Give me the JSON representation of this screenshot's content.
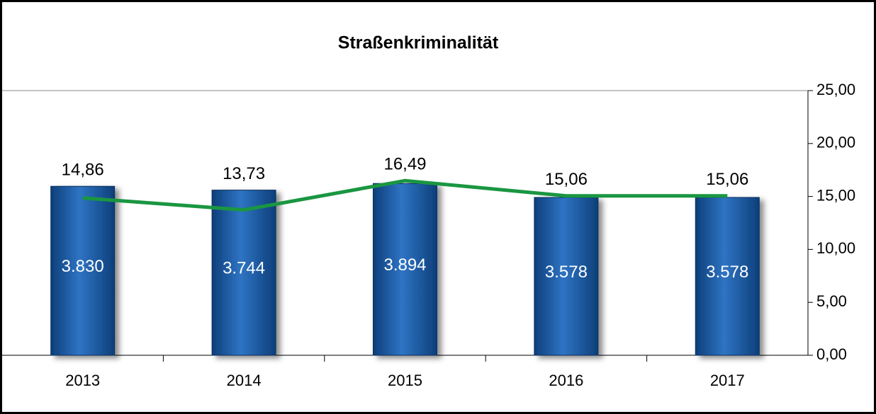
{
  "chart_data": {
    "type": "bar-line",
    "title": "Straßenkriminalität",
    "categories": [
      "2013",
      "2014",
      "2015",
      "2016",
      "2017"
    ],
    "series": [
      {
        "type": "bar",
        "color": "#1f5fa8",
        "values": [
          3830,
          3744,
          3894,
          3578,
          3578
        ],
        "value_labels": [
          "3.830",
          "3.744",
          "3.894",
          "3.578",
          "3.578"
        ]
      },
      {
        "type": "line",
        "axis": "y2",
        "color": "#1a9641",
        "values": [
          14.86,
          13.73,
          16.49,
          15.06,
          15.06
        ],
        "value_labels": [
          "14,86",
          "13,73",
          "16,49",
          "15,06",
          "15,06"
        ]
      }
    ],
    "ylim": [
      0,
      6000
    ],
    "y2lim": [
      0,
      25
    ],
    "y2ticks": [
      {
        "value": 0,
        "label": "0,00"
      },
      {
        "value": 5,
        "label": "5,00"
      },
      {
        "value": 10,
        "label": "10,00"
      },
      {
        "value": 15,
        "label": "15,00"
      },
      {
        "value": 20,
        "label": "20,00"
      },
      {
        "value": 25,
        "label": "25,00"
      }
    ]
  }
}
